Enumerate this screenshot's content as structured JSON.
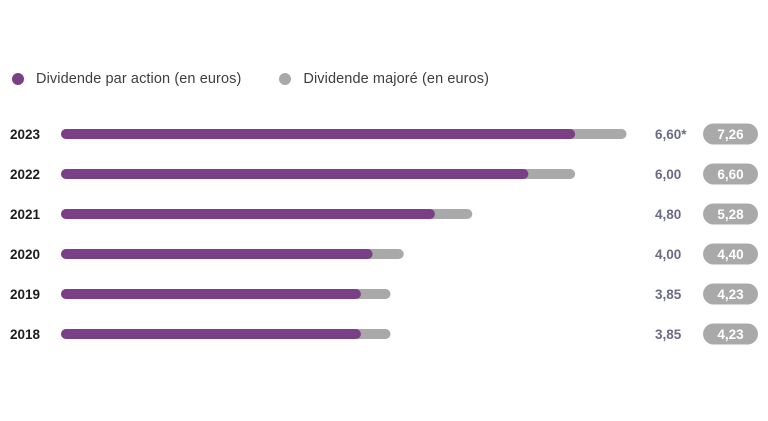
{
  "legend": {
    "dividend_label": "Dividende par action (en euros)",
    "majore_label": "Dividende majoré (en euros)"
  },
  "colors": {
    "dividend": "#7b3f86",
    "majore": "#a9a9a9",
    "value_text": "#6a6a86"
  },
  "chart_data": {
    "type": "bar",
    "orientation": "horizontal",
    "categories": [
      "2023",
      "2022",
      "2021",
      "2020",
      "2019",
      "2018"
    ],
    "series": [
      {
        "name": "Dividende par action (en euros)",
        "values": [
          6.6,
          6.0,
          4.8,
          4.0,
          3.85,
          3.85
        ],
        "labels": [
          "6,60*",
          "6,00",
          "4,80",
          "4,00",
          "3,85",
          "3,85"
        ]
      },
      {
        "name": "Dividende majoré (en euros)",
        "values": [
          7.26,
          6.6,
          5.28,
          4.4,
          4.23,
          4.23
        ],
        "labels": [
          "7,26",
          "6,60",
          "5,28",
          "4,40",
          "4,23",
          "4,23"
        ]
      }
    ],
    "legend_position": "top-left",
    "grid": false
  }
}
